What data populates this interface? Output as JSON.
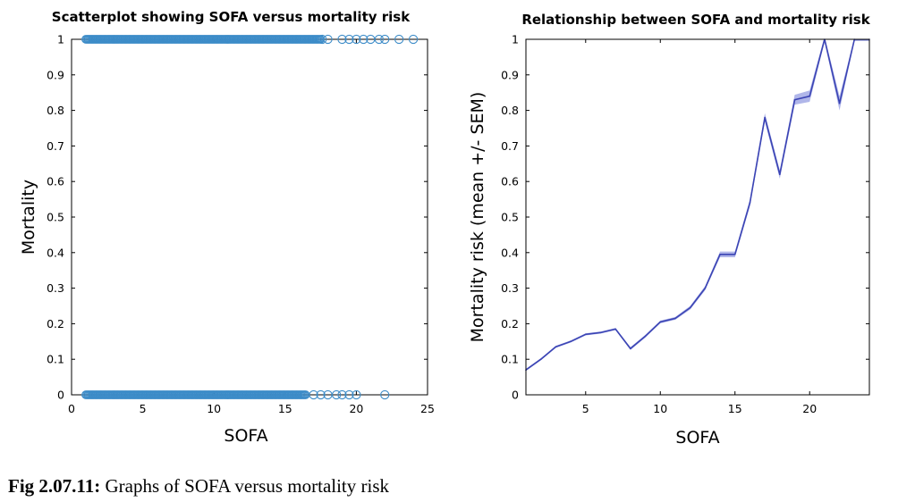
{
  "chart_data": [
    {
      "type": "scatter",
      "title": "Scatterplot showing SOFA versus mortality risk",
      "xlabel": "SOFA",
      "ylabel": "Mortality",
      "xlim": [
        0,
        25
      ],
      "ylim": [
        0,
        1
      ],
      "xticks": [
        "0",
        "5",
        "10",
        "15",
        "20",
        "25"
      ],
      "yticks": [
        "0",
        "0.1",
        "0.2",
        "0.3",
        "0.4",
        "0.5",
        "0.6",
        "0.7",
        "0.8",
        "0.9",
        "1"
      ],
      "color": "#3d8cc8",
      "series": [
        {
          "values": [
            {
              "x_range": [
                1,
                17.5
              ],
              "y": 1
            },
            {
              "x": 17.6,
              "y": 1
            },
            {
              "x": 18.0,
              "y": 1
            },
            {
              "x": 19.0,
              "y": 1
            },
            {
              "x": 19.5,
              "y": 1
            },
            {
              "x": 20.0,
              "y": 1
            },
            {
              "x": 20.5,
              "y": 1
            },
            {
              "x": 21.0,
              "y": 1
            },
            {
              "x": 21.6,
              "y": 1
            },
            {
              "x": 22.0,
              "y": 1
            },
            {
              "x": 23.0,
              "y": 1
            },
            {
              "x": 24.0,
              "y": 1
            },
            {
              "x_range": [
                1,
                16.5
              ],
              "y": 0
            },
            {
              "x": 17.0,
              "y": 0
            },
            {
              "x": 17.5,
              "y": 0
            },
            {
              "x": 18.0,
              "y": 0
            },
            {
              "x": 18.6,
              "y": 0
            },
            {
              "x": 19.0,
              "y": 0
            },
            {
              "x": 19.5,
              "y": 0
            },
            {
              "x": 20.0,
              "y": 0
            },
            {
              "x": 22.0,
              "y": 0
            }
          ]
        }
      ]
    },
    {
      "type": "line",
      "title": "Relationship between SOFA and mortality risk",
      "xlabel": "SOFA",
      "ylabel": "Mortality risk (mean +/- SEM)",
      "xlim": [
        1,
        24
      ],
      "ylim": [
        0,
        1
      ],
      "xticks": [
        "5",
        "10",
        "15",
        "20"
      ],
      "yticks": [
        "0",
        "0.1",
        "0.2",
        "0.3",
        "0.4",
        "0.5",
        "0.6",
        "0.7",
        "0.8",
        "0.9",
        "1"
      ],
      "color": "#3b44b4",
      "band_color": "#8f97df",
      "series": [
        {
          "x": [
            1,
            2,
            3,
            4,
            5,
            6,
            7,
            8,
            9,
            10,
            11,
            12,
            13,
            14,
            15,
            16,
            17,
            18,
            19,
            20,
            21,
            22,
            23,
            24
          ],
          "values": [
            0.07,
            0.1,
            0.135,
            0.15,
            0.17,
            0.175,
            0.185,
            0.13,
            0.165,
            0.205,
            0.215,
            0.245,
            0.3,
            0.395,
            0.395,
            0.54,
            0.78,
            0.62,
            0.83,
            0.84,
            1.0,
            0.82,
            1.0,
            1.0
          ],
          "sem": [
            0.003,
            0.003,
            0.003,
            0.003,
            0.003,
            0.003,
            0.003,
            0.004,
            0.004,
            0.004,
            0.004,
            0.005,
            0.006,
            0.008,
            0.008,
            0.01,
            0.012,
            0.012,
            0.014,
            0.016,
            0.008,
            0.02,
            0.005,
            0.005
          ]
        }
      ]
    }
  ],
  "caption": {
    "label": "Fig 2.07.11:",
    "text": " Graphs of SOFA versus mortality risk"
  }
}
